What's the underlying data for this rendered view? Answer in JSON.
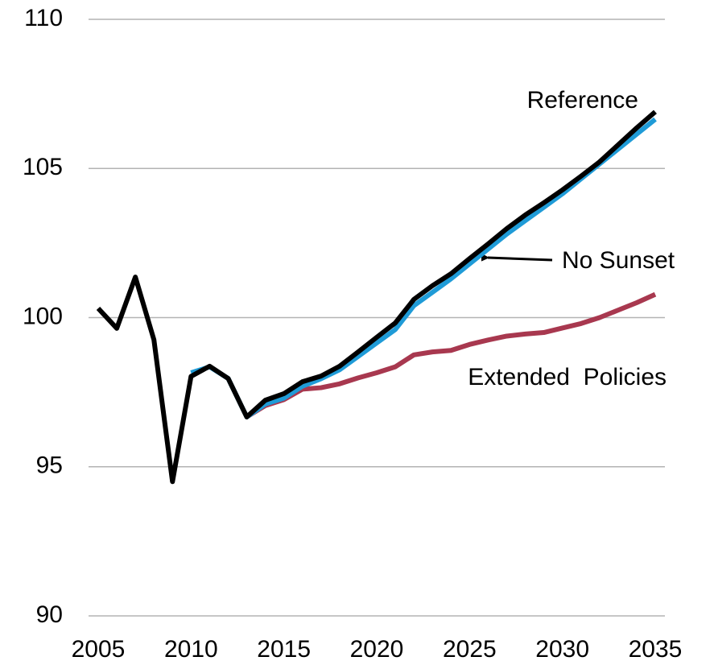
{
  "chart_data": {
    "type": "line",
    "x": [
      2005,
      2006,
      2007,
      2008,
      2009,
      2010,
      2011,
      2012,
      2013,
      2014,
      2015,
      2016,
      2017,
      2018,
      2019,
      2020,
      2021,
      2022,
      2023,
      2024,
      2025,
      2026,
      2027,
      2028,
      2029,
      2030,
      2031,
      2032,
      2033,
      2034,
      2035
    ],
    "series": [
      {
        "name": "Extended  Policies",
        "color": "#a8384f",
        "values": [
          null,
          null,
          null,
          null,
          null,
          null,
          null,
          null,
          96.67,
          97.05,
          97.25,
          97.6,
          97.65,
          97.78,
          97.98,
          98.15,
          98.35,
          98.75,
          98.85,
          98.9,
          99.1,
          99.25,
          99.38,
          99.45,
          99.5,
          99.65,
          99.8,
          100.0,
          100.25,
          100.5,
          100.78
        ]
      },
      {
        "name": "No Sunset",
        "color": "#1f9bd7",
        "values": [
          null,
          null,
          null,
          null,
          null,
          98.15,
          98.35,
          97.96,
          96.67,
          97.1,
          97.3,
          97.7,
          97.95,
          98.25,
          98.7,
          99.15,
          99.6,
          100.4,
          100.85,
          101.3,
          101.8,
          102.3,
          102.8,
          103.25,
          103.7,
          104.15,
          104.65,
          105.15,
          105.65,
          106.15,
          106.65
        ]
      },
      {
        "name": "Reference",
        "color": "#000000",
        "values": [
          100.31,
          99.64,
          101.36,
          99.26,
          94.5,
          98.03,
          98.37,
          97.96,
          96.67,
          97.23,
          97.45,
          97.85,
          98.04,
          98.37,
          98.85,
          99.34,
          99.82,
          100.61,
          101.07,
          101.47,
          101.98,
          102.47,
          102.98,
          103.44,
          103.85,
          104.28,
          104.74,
          105.22,
          105.79,
          106.36,
          106.9
        ]
      }
    ],
    "xlim": [
      2005,
      2035
    ],
    "xticks": [
      2005,
      2010,
      2015,
      2020,
      2025,
      2030,
      2035
    ],
    "ylim": [
      90,
      110
    ],
    "yticks": [
      90,
      95,
      100,
      105,
      110
    ],
    "grid": true
  }
}
